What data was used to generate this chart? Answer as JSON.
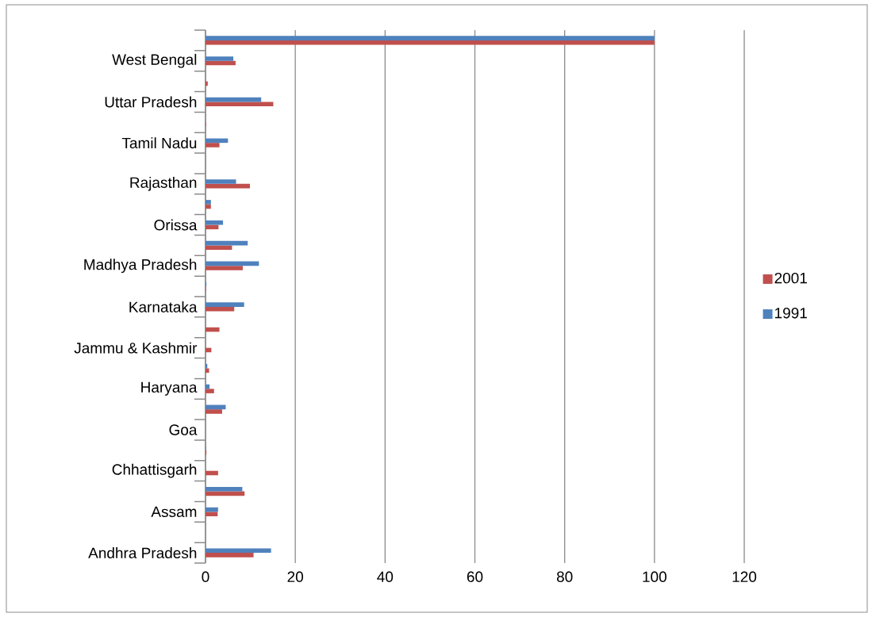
{
  "chart_data": {
    "type": "bar",
    "orientation": "horizontal",
    "categories": [
      null,
      "West Bengal",
      null,
      "Uttar Pradesh",
      null,
      "Tamil Nadu",
      null,
      "Rajasthan",
      null,
      "Orissa",
      null,
      "Madhya Pradesh",
      null,
      "Karnataka",
      null,
      "Jammu & Kashmir",
      null,
      "Haryana",
      null,
      "Goa",
      null,
      "Chhattisgarh",
      null,
      "Assam",
      null,
      "Andhra Pradesh"
    ],
    "series": [
      {
        "name": "2001",
        "color": "#c0504d",
        "values": [
          100,
          6.7,
          0.5,
          15.1,
          0.1,
          3.1,
          null,
          9.9,
          1.2,
          2.9,
          5.9,
          8.3,
          0.1,
          6.4,
          3.1,
          1.3,
          0.8,
          1.9,
          3.7,
          null,
          0.2,
          2.8,
          8.7,
          2.7,
          null,
          10.7
        ]
      },
      {
        "name": "1991",
        "color": "#4f81bd",
        "values": [
          100,
          6.2,
          null,
          12.4,
          null,
          5.0,
          null,
          6.8,
          1.2,
          3.9,
          9.4,
          11.9,
          0.2,
          8.6,
          null,
          null,
          0.4,
          0.9,
          4.5,
          null,
          0.1,
          null,
          8.2,
          2.8,
          null,
          14.6
        ]
      }
    ],
    "xlim": [
      0,
      120
    ],
    "xticks": [
      0,
      20,
      40,
      60,
      80,
      100,
      120
    ],
    "grid": "x",
    "legend": "right"
  }
}
